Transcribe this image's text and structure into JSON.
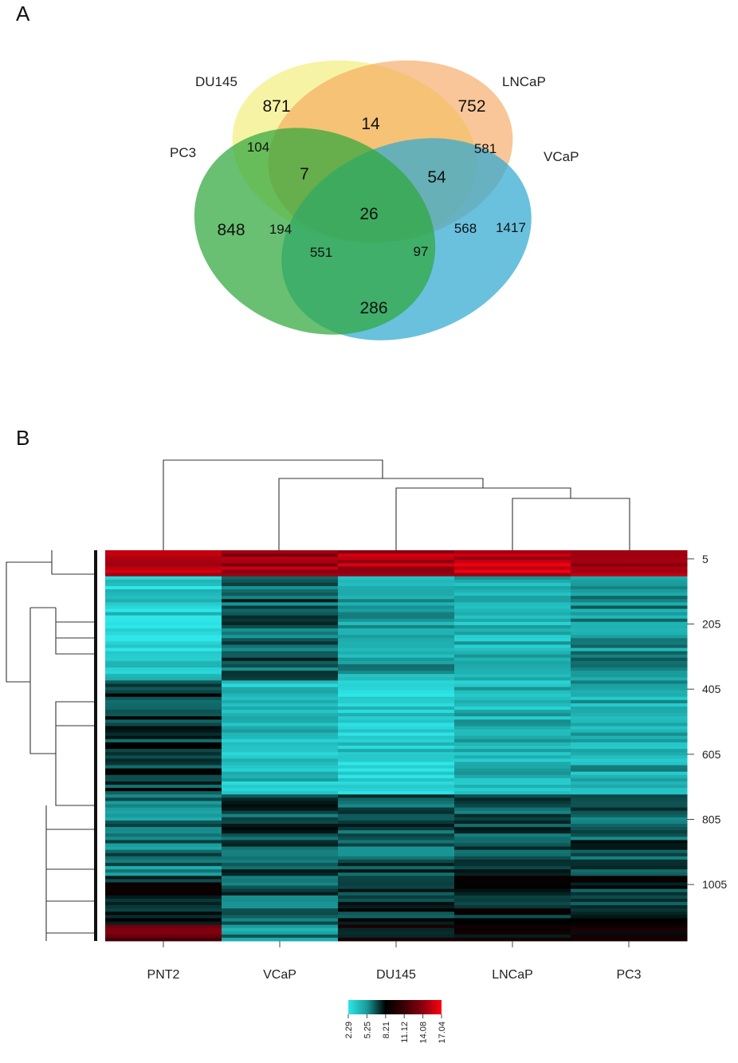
{
  "chart_data": [
    {
      "type": "venn",
      "panel_label": "A",
      "sets": [
        {
          "name": "DU145",
          "color": "#f3ee7e"
        },
        {
          "name": "LNCaP",
          "color": "#f6a35a"
        },
        {
          "name": "PC3",
          "color": "#2fa83c"
        },
        {
          "name": "VCaP",
          "color": "#2fa9d1"
        }
      ],
      "regions": [
        {
          "sets": [
            "DU145"
          ],
          "count": 871
        },
        {
          "sets": [
            "LNCaP"
          ],
          "count": 752
        },
        {
          "sets": [
            "PC3"
          ],
          "count": 848
        },
        {
          "sets": [
            "VCaP"
          ],
          "count": 1417
        },
        {
          "sets": [
            "DU145",
            "LNCaP"
          ],
          "count": 14
        },
        {
          "sets": [
            "DU145",
            "PC3"
          ],
          "count": 104
        },
        {
          "sets": [
            "LNCaP",
            "VCaP"
          ],
          "count": 581
        },
        {
          "sets": [
            "DU145",
            "LNCaP",
            "PC3"
          ],
          "count": 7
        },
        {
          "sets": [
            "DU145",
            "LNCaP",
            "VCaP"
          ],
          "count": 54
        },
        {
          "sets": [
            "DU145",
            "LNCaP",
            "PC3",
            "VCaP"
          ],
          "count": 26
        },
        {
          "sets": [
            "PC3",
            "LNCaP"
          ],
          "count": 194
        },
        {
          "sets": [
            "DU145",
            "VCaP"
          ],
          "count": 568
        },
        {
          "sets": [
            "PC3",
            "LNCaP",
            "VCaP"
          ],
          "count": 551
        },
        {
          "sets": [
            "DU145",
            "PC3",
            "VCaP"
          ],
          "count": 97
        },
        {
          "sets": [
            "PC3",
            "VCaP"
          ],
          "count": 286
        }
      ]
    },
    {
      "type": "heatmap",
      "panel_label": "B",
      "columns": [
        "PNT2",
        "VCaP",
        "DU145",
        "LNCaP",
        "PC3"
      ],
      "row_tick_labels": [
        "5",
        "205",
        "405",
        "605",
        "805",
        "1005"
      ],
      "color_scale": {
        "ticks": [
          "2.29",
          "5.25",
          "8.21",
          "11.12",
          "14.08",
          "17.04"
        ],
        "colors": [
          "#2ee6e8",
          "#1a9a9a",
          "#000000",
          "#3a0006",
          "#8a0010",
          "#ff0010"
        ]
      },
      "column_dendrogram": "((PNT2),(VCaP,(DU145,(LNCaP,PC3))))",
      "blocks": [
        {
          "rows": [
            1,
            80
          ],
          "values": [
            15.5,
            14.5,
            15.0,
            15.5,
            14.8
          ]
        },
        {
          "rows": [
            81,
            400
          ],
          "values": [
            3.2,
            6.6,
            4.8,
            4.3,
            5.3
          ]
        },
        {
          "rows": [
            401,
            750
          ],
          "values": [
            7.2,
            4.0,
            3.4,
            4.3,
            4.6
          ]
        },
        {
          "rows": [
            751,
            1000
          ],
          "values": [
            5.8,
            7.0,
            6.6,
            6.8,
            6.8
          ]
        },
        {
          "rows": [
            1001,
            1150
          ],
          "values": [
            8.0,
            6.4,
            7.4,
            7.6,
            7.4
          ]
        },
        {
          "rows": [
            1151,
            1200
          ],
          "values": [
            12.5,
            5.5,
            8.5,
            8.4,
            8.5
          ]
        }
      ]
    }
  ]
}
